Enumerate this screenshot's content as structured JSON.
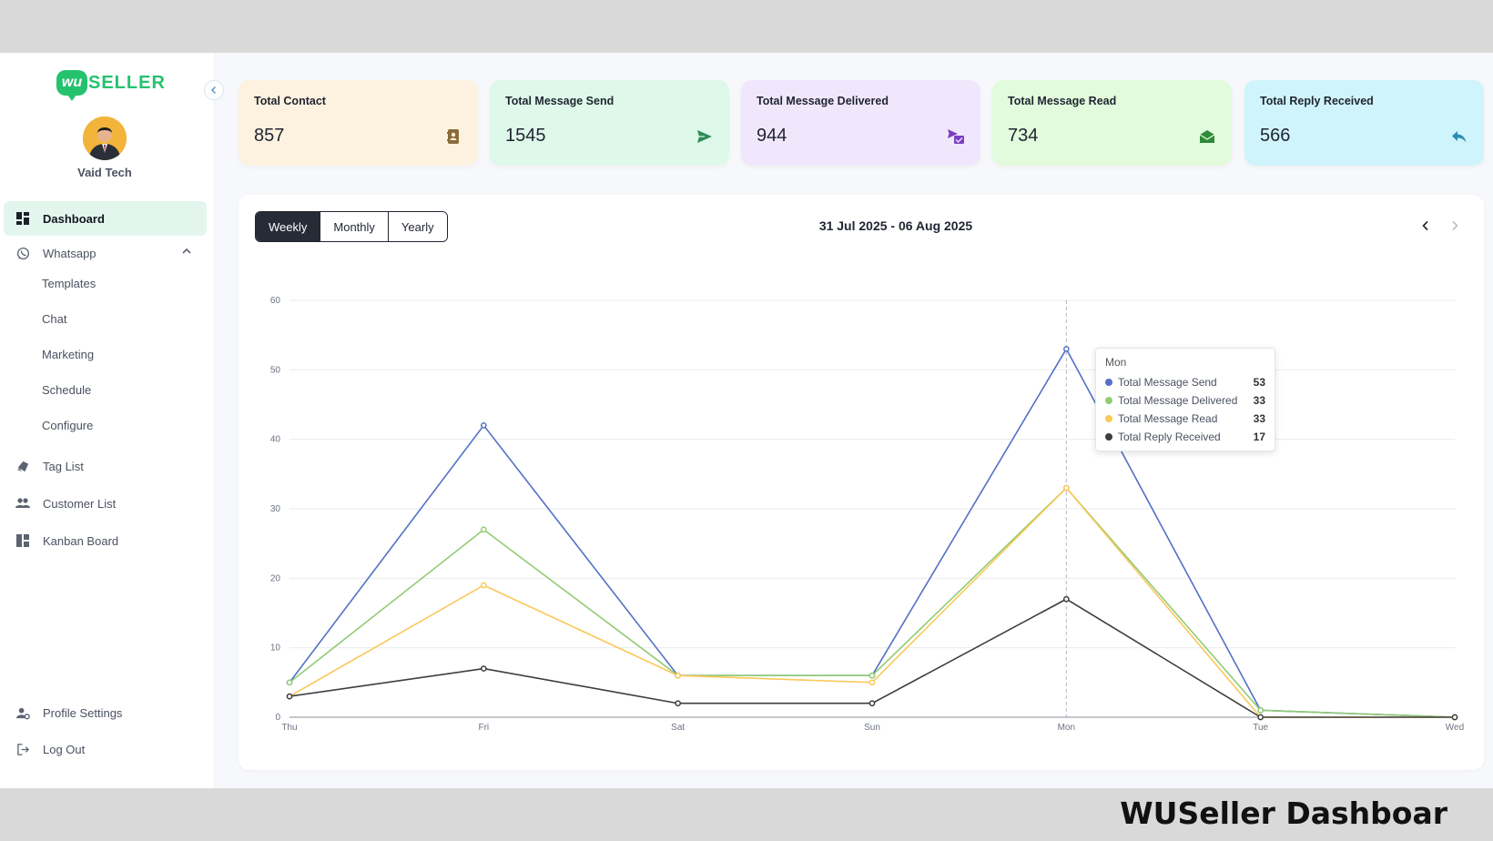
{
  "caption": "WUSeller Dashboar",
  "brand": {
    "logo_mark": "wu",
    "logo_text": "SELLER",
    "color": "#25c26e"
  },
  "user": {
    "name": "Vaid Tech"
  },
  "sidebar": {
    "items": [
      {
        "label": "Dashboard",
        "icon": "dashboard-icon",
        "active": true
      },
      {
        "label": "Whatsapp",
        "icon": "whatsapp-icon",
        "expanded": true
      },
      {
        "label": "Tag List",
        "icon": "tag-icon"
      },
      {
        "label": "Customer List",
        "icon": "people-icon"
      },
      {
        "label": "Kanban Board",
        "icon": "kanban-icon"
      }
    ],
    "whatsapp_sub": [
      "Templates",
      "Chat",
      "Marketing",
      "Schedule",
      "Configure"
    ],
    "bottom": [
      {
        "label": "Profile Settings",
        "icon": "profile-settings-icon"
      },
      {
        "label": "Log Out",
        "icon": "logout-icon"
      }
    ]
  },
  "stats": [
    {
      "title": "Total Contact",
      "value": "857",
      "icon": "contact-book-icon",
      "bg": "#fdf2df",
      "accent": "#8b6a3b"
    },
    {
      "title": "Total Message Send",
      "value": "1545",
      "icon": "send-icon",
      "bg": "#def8ea",
      "accent": "#2e8b57"
    },
    {
      "title": "Total Message Delivered",
      "value": "944",
      "icon": "delivered-icon",
      "bg": "#f1e7fd",
      "accent": "#7b3fc0"
    },
    {
      "title": "Total Message Read",
      "value": "734",
      "icon": "open-mail-icon",
      "bg": "#e2fbdc",
      "accent": "#2f8a3a"
    },
    {
      "title": "Total Reply Received",
      "value": "566",
      "icon": "reply-icon",
      "bg": "#cff4fb",
      "accent": "#2a8fb0"
    }
  ],
  "period_tabs": [
    "Weekly",
    "Monthly",
    "Yearly"
  ],
  "active_period": "Weekly",
  "date_range": "31 Jul 2025 - 06 Aug 2025",
  "chart_data": {
    "type": "line",
    "categories": [
      "Thu",
      "Fri",
      "Sat",
      "Sun",
      "Mon",
      "Tue",
      "Wed"
    ],
    "ylim": [
      0,
      60
    ],
    "yticks": [
      0,
      10,
      20,
      30,
      40,
      50,
      60
    ],
    "grid": true,
    "series": [
      {
        "name": "Total Message Send",
        "color": "#5470c6",
        "values": [
          5,
          42,
          6,
          6,
          53,
          1,
          0
        ]
      },
      {
        "name": "Total Message Delivered",
        "color": "#91cc75",
        "values": [
          5,
          27,
          6,
          6,
          33,
          1,
          0
        ]
      },
      {
        "name": "Total Message Read",
        "color": "#fac858",
        "values": [
          3,
          19,
          6,
          5,
          33,
          0,
          0
        ]
      },
      {
        "name": "Total Reply Received",
        "color": "#3d3d3d",
        "values": [
          3,
          7,
          2,
          2,
          17,
          0,
          0
        ]
      }
    ],
    "tooltip": {
      "category": "Mon"
    }
  }
}
